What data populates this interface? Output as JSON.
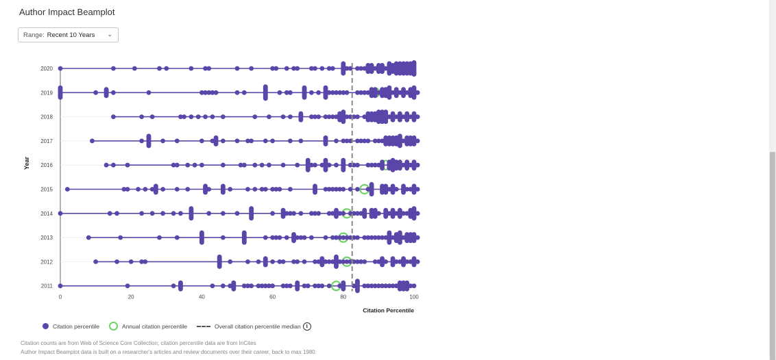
{
  "title": "Author Impact Beamplot",
  "range": {
    "label": "Range:",
    "value": "Recent 10 Years"
  },
  "colors": {
    "dot": "#5a45a8",
    "line": "#5a45a8",
    "ring": "#72d269",
    "median": "#888888"
  },
  "chart_data": {
    "type": "scatter",
    "xlabel": "Citation Percentile",
    "ylabel": "Year",
    "xlim": [
      0,
      100
    ],
    "x_ticks": [
      0,
      20,
      40,
      60,
      80,
      100
    ],
    "overall_median": 82.5,
    "years": [
      {
        "year": "2020",
        "annual_median": null,
        "points": [
          0,
          15,
          21,
          28,
          30,
          37,
          41,
          42,
          50,
          54,
          60,
          60.5,
          64,
          66,
          66.5,
          71,
          72,
          74,
          76,
          77,
          80,
          80.5,
          80,
          80.2,
          82,
          84,
          84.5,
          86,
          87,
          87.3,
          88,
          88.5,
          88.2,
          90,
          90.5,
          90.2,
          91,
          92,
          92.5,
          93,
          93.2,
          94,
          94.5,
          94.2,
          95,
          95.5,
          95.2,
          96,
          96.5,
          96.2,
          97,
          97.5,
          97.2,
          98,
          98.5,
          98.2,
          99,
          99.5,
          99.2,
          100,
          100.3,
          100
        ]
      },
      {
        "year": "2019",
        "annual_median": 89,
        "points": [
          0,
          0.2,
          0,
          10,
          12.5,
          12.7,
          15,
          25,
          40,
          41,
          42,
          43,
          44,
          50,
          52,
          58,
          58.2,
          58.4,
          58,
          62,
          64,
          65,
          69,
          69.2,
          69,
          71,
          73,
          74.5,
          74.7,
          74.5,
          76,
          77,
          78,
          79,
          80,
          81,
          84,
          85,
          86,
          87,
          88,
          88.2,
          89,
          89.2,
          90,
          91,
          91.2,
          92,
          92.5,
          92.2,
          93,
          93.5,
          93.2,
          95,
          95.5,
          95.2,
          97,
          97.5,
          97.2,
          99,
          99.5,
          99.2,
          100,
          100.5,
          100.2
        ]
      },
      {
        "year": "2018",
        "annual_median": null,
        "points": [
          15,
          23,
          26,
          34,
          35,
          37,
          39,
          41,
          43,
          46,
          55,
          59,
          63,
          65,
          68,
          68.2,
          71,
          72,
          73,
          75,
          76,
          77,
          77.5,
          79,
          79.3,
          79.5,
          80,
          80.3,
          80.5,
          82,
          83,
          84,
          86,
          87,
          87.3,
          88,
          88.3,
          89,
          89.5,
          89.3,
          90,
          90.5,
          90.2,
          91,
          91.5,
          91.2,
          92,
          92.5,
          92.2,
          94,
          94.5,
          94.2,
          96,
          96.5,
          96.2,
          98,
          98.5,
          98.2,
          100,
          100.5,
          100.2
        ]
      },
      {
        "year": "2017",
        "annual_median": null,
        "points": [
          9,
          23,
          25,
          25.2,
          25,
          29,
          33,
          40,
          43,
          44,
          44.2,
          46,
          50,
          53,
          53.5,
          58,
          60,
          65,
          68,
          75,
          75.2,
          78,
          80,
          81,
          82,
          84,
          85,
          86,
          87,
          89,
          90,
          91,
          92,
          92.3,
          93,
          93.5,
          93.2,
          94,
          95,
          95.5,
          95.2,
          96,
          96.5,
          96.2,
          98,
          98.5,
          98.2,
          99,
          100,
          100.5,
          100.2
        ]
      },
      {
        "year": "2016",
        "annual_median": 92,
        "points": [
          13,
          15,
          19,
          32,
          33,
          36,
          38,
          40,
          46,
          51,
          52,
          55,
          57,
          59,
          63,
          67,
          70,
          70.2,
          70.5,
          70.2,
          72,
          74,
          75,
          75.2,
          75,
          76,
          78,
          80,
          80.2,
          80,
          82,
          83,
          84,
          87,
          88,
          89,
          90,
          91,
          91.2,
          93,
          93.5,
          93.2,
          94,
          94.5,
          94.2,
          95,
          96,
          96.5,
          96.2,
          98,
          98.5,
          98.2,
          100,
          100.5,
          100.2
        ]
      },
      {
        "year": "2015",
        "annual_median": 86,
        "points": [
          2,
          18,
          19,
          22,
          24,
          26,
          27,
          27.2,
          29,
          33,
          36,
          41,
          41.2,
          42,
          46,
          46.2,
          48,
          53,
          55,
          57,
          58,
          60,
          61,
          62,
          65,
          72,
          72.2,
          75,
          76,
          77,
          78,
          79,
          80,
          82,
          84,
          87,
          88,
          88.2,
          88,
          91,
          91.2,
          92,
          92.5,
          92.2,
          94,
          94.5,
          94.2,
          97,
          97.5,
          97.2,
          99,
          100,
          100.5,
          100.2
        ]
      },
      {
        "year": "2014",
        "annual_median": 81,
        "points": [
          0,
          14,
          16,
          23,
          26,
          29,
          32,
          34,
          37,
          37.2,
          37,
          42,
          46,
          50,
          54,
          54.2,
          54,
          60,
          63,
          63.2,
          64,
          65,
          66,
          68,
          71,
          72,
          73,
          76,
          77,
          78,
          78.2,
          79,
          80,
          82,
          83,
          84,
          85,
          86,
          86.2,
          88,
          88.5,
          88.2,
          89,
          90,
          92,
          92.5,
          92.2,
          94,
          94.5,
          94.2,
          96,
          96.5,
          96.2,
          98,
          99,
          99.5,
          99.2,
          100,
          100.5,
          100.2
        ]
      },
      {
        "year": "2013",
        "annual_median": 80,
        "points": [
          8,
          17,
          28,
          33,
          40,
          40.2,
          40,
          46,
          52,
          52.2,
          52,
          58,
          60,
          61,
          62,
          64,
          66,
          66.2,
          67,
          68,
          69,
          71,
          75,
          77,
          78,
          79,
          80,
          80.5,
          82,
          83,
          84,
          86,
          87,
          88,
          89,
          90,
          91,
          92,
          92.5,
          93,
          93.2,
          94,
          95,
          95.5,
          95.2,
          96,
          96.5,
          96.2,
          98,
          98.5,
          98.2,
          99,
          100,
          100.5,
          100.2
        ]
      },
      {
        "year": "2012",
        "annual_median": 81,
        "points": [
          10,
          16,
          20,
          23,
          24,
          45,
          45.2,
          45,
          48,
          53,
          56,
          58,
          58.2,
          60,
          62,
          63,
          66,
          67,
          69,
          72,
          73,
          74,
          74.3,
          75,
          76,
          77,
          77.5,
          78,
          78.3,
          79,
          80,
          80.5,
          82,
          83,
          84,
          85,
          86,
          89,
          90,
          91,
          91.2,
          92,
          94,
          94.5,
          94.2,
          96,
          97,
          97.5,
          97.2,
          99,
          100,
          100.5,
          100.2
        ]
      },
      {
        "year": "2011",
        "annual_median": 78,
        "points": [
          0,
          19,
          32,
          34,
          34.2,
          43,
          46,
          48,
          49,
          49.2,
          52,
          53,
          54,
          56,
          57,
          58,
          59,
          60,
          63,
          64,
          65,
          67,
          67.2,
          69,
          70,
          72,
          73,
          74,
          76,
          79,
          80,
          80.3,
          83,
          84,
          84.2,
          84,
          86,
          87,
          88,
          89,
          90,
          91,
          92,
          93,
          94,
          95,
          96,
          96.5,
          96.2,
          97,
          98,
          98.5,
          98.2,
          100
        ]
      }
    ]
  },
  "legend": {
    "dot_label": "Citation percentile",
    "ring_label": "Annual citation percentile",
    "median_label": "Overall citation percentile median",
    "info_glyph": "i"
  },
  "footer": {
    "line1": "Citation counts are from Web of Science Core Collection; citation percentile data are from InCites",
    "line2": "Author Impact Beamplot data is built on a researcher's articles and review documents over their career, back to max 1980."
  }
}
